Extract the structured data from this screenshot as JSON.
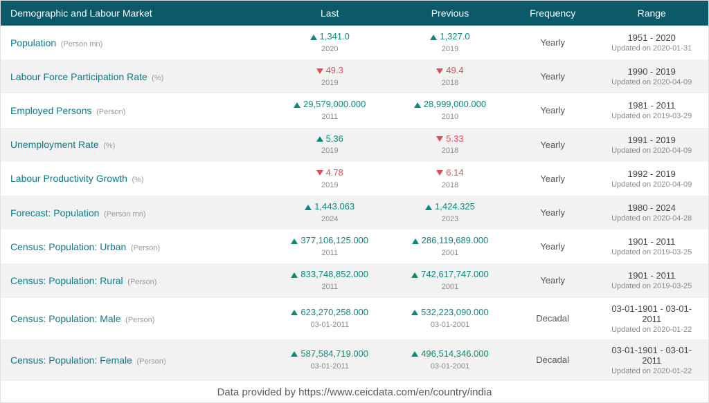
{
  "colors": {
    "header_bg": "#0b5969",
    "header_text": "#ffffff",
    "row_even_bg": "#ffffff",
    "row_odd_bg": "#f2f2f2",
    "link_text": "#0b7a8a",
    "up": "#0b8a7a",
    "down": "#e24b5a",
    "muted": "#8a8a8a"
  },
  "columns": {
    "name": "Demographic and Labour Market",
    "last": "Last",
    "previous": "Previous",
    "frequency": "Frequency",
    "range": "Range"
  },
  "footer": "Data provided by https://www.ceicdata.com/en/country/india",
  "rows": [
    {
      "name": "Population",
      "unit": "(Person mn)",
      "last": {
        "dir": "up",
        "value": "1,341.0",
        "sub": "2020"
      },
      "prev": {
        "dir": "up",
        "value": "1,327.0",
        "sub": "2019"
      },
      "freq": "Yearly",
      "range": "1951 - 2020",
      "updated": "Updated on 2020-01-31"
    },
    {
      "name": "Labour Force Participation Rate",
      "unit": "(%)",
      "last": {
        "dir": "down",
        "value": "49.3",
        "sub": "2019"
      },
      "prev": {
        "dir": "down",
        "value": "49.4",
        "sub": "2018"
      },
      "freq": "Yearly",
      "range": "1990 - 2019",
      "updated": "Updated on 2020-04-09"
    },
    {
      "name": "Employed Persons",
      "unit": "(Person)",
      "last": {
        "dir": "up",
        "value": "29,579,000.000",
        "sub": "2011"
      },
      "prev": {
        "dir": "up",
        "value": "28,999,000.000",
        "sub": "2010"
      },
      "freq": "Yearly",
      "range": "1981 - 2011",
      "updated": "Updated on 2019-03-29"
    },
    {
      "name": "Unemployment Rate",
      "unit": "(%)",
      "last": {
        "dir": "up",
        "value": "5.36",
        "sub": "2019"
      },
      "prev": {
        "dir": "down",
        "value": "5.33",
        "sub": "2018"
      },
      "freq": "Yearly",
      "range": "1991 - 2019",
      "updated": "Updated on 2020-04-09"
    },
    {
      "name": "Labour Productivity Growth",
      "unit": "(%)",
      "last": {
        "dir": "down",
        "value": "4.78",
        "sub": "2019"
      },
      "prev": {
        "dir": "down",
        "value": "6.14",
        "sub": "2018"
      },
      "freq": "Yearly",
      "range": "1992 - 2019",
      "updated": "Updated on 2020-04-09"
    },
    {
      "name": "Forecast: Population",
      "unit": "(Person mn)",
      "last": {
        "dir": "up",
        "value": "1,443.063",
        "sub": "2024"
      },
      "prev": {
        "dir": "up",
        "value": "1,424.325",
        "sub": "2023"
      },
      "freq": "Yearly",
      "range": "1980 - 2024",
      "updated": "Updated on 2020-04-28"
    },
    {
      "name": "Census: Population: Urban",
      "unit": "(Person)",
      "last": {
        "dir": "up",
        "value": "377,106,125.000",
        "sub": "2011"
      },
      "prev": {
        "dir": "up",
        "value": "286,119,689.000",
        "sub": "2001"
      },
      "freq": "Yearly",
      "range": "1901 - 2011",
      "updated": "Updated on 2019-03-25"
    },
    {
      "name": "Census: Population: Rural",
      "unit": "(Person)",
      "last": {
        "dir": "up",
        "value": "833,748,852.000",
        "sub": "2011"
      },
      "prev": {
        "dir": "up",
        "value": "742,617,747.000",
        "sub": "2001"
      },
      "freq": "Yearly",
      "range": "1901 - 2011",
      "updated": "Updated on 2019-03-25"
    },
    {
      "name": "Census: Population: Male",
      "unit": "(Person)",
      "last": {
        "dir": "up",
        "value": "623,270,258.000",
        "sub": "03-01-2011"
      },
      "prev": {
        "dir": "up",
        "value": "532,223,090.000",
        "sub": "03-01-2001"
      },
      "freq": "Decadal",
      "range": "03-01-1901 - 03-01-2011",
      "updated": "Updated on 2020-01-22"
    },
    {
      "name": "Census: Population: Female",
      "unit": "(Person)",
      "last": {
        "dir": "up",
        "value": "587,584,719.000",
        "sub": "03-01-2011"
      },
      "prev": {
        "dir": "up",
        "value": "496,514,346.000",
        "sub": "03-01-2001"
      },
      "freq": "Decadal",
      "range": "03-01-1901 - 03-01-2011",
      "updated": "Updated on 2020-01-22"
    }
  ]
}
